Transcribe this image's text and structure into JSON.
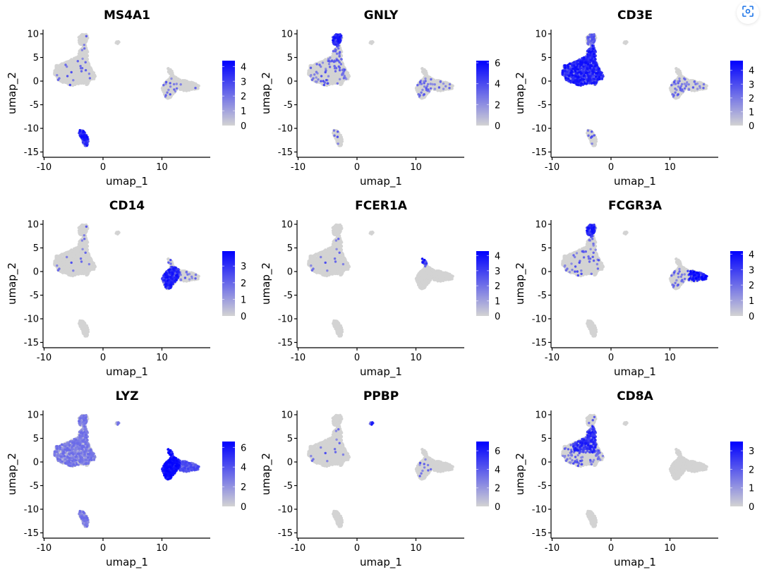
{
  "figure": {
    "type": "feature_plot_grid",
    "rows": 3,
    "cols": 3
  },
  "toolbar": {
    "lens_button_icon": "image-search-icon"
  },
  "colors": {
    "low": "#d3d3d3",
    "high": "#0000ff",
    "axis": "#000000"
  },
  "chart_data": [
    {
      "type": "scatter",
      "title": "MS4A1",
      "xlabel": "umap_1",
      "ylabel": "umap_2",
      "xticks": [
        "-10",
        "0",
        "10"
      ],
      "yticks": [
        "10",
        "5",
        "0",
        "-5",
        "-10",
        "-15"
      ],
      "xlim": [
        -10,
        18
      ],
      "ylim": [
        -16,
        11
      ],
      "legend": {
        "position": "right",
        "ticks": [
          "4",
          "3",
          "2",
          "1",
          "0"
        ],
        "max": 4.4
      },
      "expression": {
        "T_main": 0.02,
        "NK_top": 0.02,
        "B_cluster": 0.85,
        "mono_cd14": 0.03,
        "mono_fcgr3a": 0.03,
        "dc": 0.0,
        "platelet": 0.0
      }
    },
    {
      "type": "scatter",
      "title": "GNLY",
      "xlabel": "umap_1",
      "ylabel": "umap_2",
      "xticks": [
        "-10",
        "0",
        "10"
      ],
      "yticks": [
        "10",
        "5",
        "0",
        "-5",
        "-10",
        "-15"
      ],
      "xlim": [
        -10,
        18
      ],
      "ylim": [
        -16,
        11
      ],
      "legend": {
        "position": "right",
        "ticks": [
          "6",
          "4",
          "2",
          "0"
        ],
        "max": 6.2
      },
      "expression": {
        "T_main": 0.08,
        "NK_top": 0.9,
        "B_cluster": 0.04,
        "mono_cd14": 0.06,
        "mono_fcgr3a": 0.06,
        "dc": 0.0,
        "platelet": 0.0
      }
    },
    {
      "type": "scatter",
      "title": "CD3E",
      "xlabel": "umap_1",
      "ylabel": "umap_2",
      "xticks": [
        "-10",
        "0",
        "10"
      ],
      "yticks": [
        "10",
        "5",
        "0",
        "-5",
        "-10",
        "-15"
      ],
      "xlim": [
        -10,
        18
      ],
      "ylim": [
        -16,
        11
      ],
      "legend": {
        "position": "right",
        "ticks": [
          "4",
          "3",
          "2",
          "1",
          "0"
        ],
        "max": 4.7
      },
      "expression": {
        "T_main": 0.75,
        "NK_top": 0.4,
        "B_cluster": 0.06,
        "mono_cd14": 0.07,
        "mono_fcgr3a": 0.07,
        "dc": 0.0,
        "platelet": 0.0
      }
    },
    {
      "type": "scatter",
      "title": "CD14",
      "xlabel": "umap_1",
      "ylabel": "umap_2",
      "xticks": [
        "-10",
        "0",
        "10"
      ],
      "yticks": [
        "10",
        "5",
        "0",
        "-5",
        "-10",
        "-15"
      ],
      "xlim": [
        -10,
        18
      ],
      "ylim": [
        -16,
        11
      ],
      "legend": {
        "position": "right",
        "ticks": [
          "3",
          "2",
          "1",
          "0"
        ],
        "max": 3.9
      },
      "expression": {
        "T_main": 0.01,
        "NK_top": 0.01,
        "B_cluster": 0.0,
        "mono_cd14": 0.6,
        "mono_fcgr3a": 0.08,
        "dc": 0.05,
        "platelet": 0.0
      }
    },
    {
      "type": "scatter",
      "title": "FCER1A",
      "xlabel": "umap_1",
      "ylabel": "umap_2",
      "xticks": [
        "-10",
        "0",
        "10"
      ],
      "yticks": [
        "10",
        "5",
        "0",
        "-5",
        "-10",
        "-15"
      ],
      "xlim": [
        -10,
        18
      ],
      "ylim": [
        -16,
        11
      ],
      "legend": {
        "position": "right",
        "ticks": [
          "4",
          "3",
          "2",
          "1",
          "0"
        ],
        "max": 4.3
      },
      "expression": {
        "T_main": 0.01,
        "NK_top": 0.0,
        "B_cluster": 0.0,
        "mono_cd14": 0.0,
        "mono_fcgr3a": 0.01,
        "dc": 0.7,
        "platelet": 0.0
      }
    },
    {
      "type": "scatter",
      "title": "FCGR3A",
      "xlabel": "umap_1",
      "ylabel": "umap_2",
      "xticks": [
        "-10",
        "0",
        "10"
      ],
      "yticks": [
        "10",
        "5",
        "0",
        "-5",
        "-10",
        "-15"
      ],
      "xlim": [
        -10,
        18
      ],
      "ylim": [
        -16,
        11
      ],
      "legend": {
        "position": "right",
        "ticks": [
          "4",
          "3",
          "2",
          "1",
          "0"
        ],
        "max": 4.2
      },
      "expression": {
        "T_main": 0.04,
        "NK_top": 0.8,
        "B_cluster": 0.01,
        "mono_cd14": 0.05,
        "mono_fcgr3a": 0.85,
        "dc": 0.0,
        "platelet": 0.0
      }
    },
    {
      "type": "scatter",
      "title": "LYZ",
      "xlabel": "umap_1",
      "ylabel": "umap_2",
      "xticks": [
        "-10",
        "0",
        "10"
      ],
      "yticks": [
        "10",
        "5",
        "0",
        "-5",
        "-10",
        "-15"
      ],
      "xlim": [
        -10,
        18
      ],
      "ylim": [
        -16,
        11
      ],
      "legend": {
        "position": "right",
        "ticks": [
          "6",
          "4",
          "2",
          "0"
        ],
        "max": 6.6
      },
      "expression": {
        "T_main": 0.45,
        "NK_top": 0.3,
        "B_cluster": 0.45,
        "mono_cd14": 1.0,
        "mono_fcgr3a": 0.6,
        "dc": 0.9,
        "platelet": 0.45
      }
    },
    {
      "type": "scatter",
      "title": "PPBP",
      "xlabel": "umap_1",
      "ylabel": "umap_2",
      "xticks": [
        "-10",
        "0",
        "10"
      ],
      "yticks": [
        "10",
        "5",
        "0",
        "-5",
        "-10",
        "-15"
      ],
      "xlim": [
        -10,
        18
      ],
      "ylim": [
        -16,
        11
      ],
      "legend": {
        "position": "right",
        "ticks": [
          "6",
          "4",
          "2",
          "0"
        ],
        "max": 7.0
      },
      "expression": {
        "T_main": 0.01,
        "NK_top": 0.0,
        "B_cluster": 0.0,
        "mono_cd14": 0.02,
        "mono_fcgr3a": 0.01,
        "dc": 0.0,
        "platelet": 1.0
      }
    },
    {
      "type": "scatter",
      "title": "CD8A",
      "xlabel": "umap_1",
      "ylabel": "umap_2",
      "xticks": [
        "-10",
        "0",
        "10"
      ],
      "yticks": [
        "10",
        "5",
        "0",
        "-5",
        "-10",
        "-15"
      ],
      "xlim": [
        -10,
        18
      ],
      "ylim": [
        -16,
        11
      ],
      "legend": {
        "position": "right",
        "ticks": [
          "3",
          "2",
          "1",
          "0"
        ],
        "max": 3.5
      },
      "expression": {
        "T_main": 0.1,
        "NK_top": 0.05,
        "B_cluster": 0.0,
        "mono_cd14": 0.0,
        "mono_fcgr3a": 0.01,
        "dc": 0.0,
        "platelet": 0.0,
        "CD8_zone": 0.55
      }
    }
  ]
}
